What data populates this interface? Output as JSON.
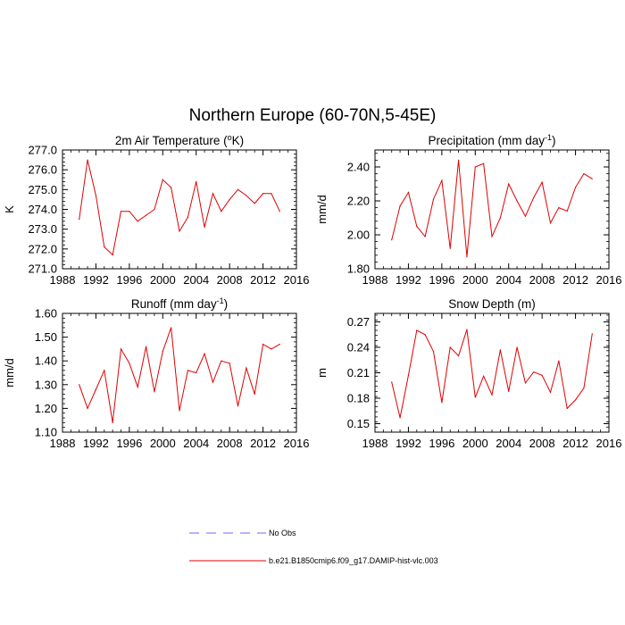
{
  "title": "Northern Europe (60-70N,5-45E)",
  "legend": {
    "items": [
      {
        "label": "No Obs",
        "color": "#6a6aff",
        "dash": true
      },
      {
        "label": "b.e21.B1850cmip6.f09_g17.DAMIP-hist-vlc.003",
        "color": "#e00000",
        "dash": false
      }
    ]
  },
  "chart_data": [
    {
      "type": "line",
      "title": "2m Air Temperature (",
      "title_sup": "o",
      "title_end": "K)",
      "ylabel": "K",
      "xlim": [
        1988,
        2016
      ],
      "xticks": [
        "1988",
        "1992",
        "1996",
        "2000",
        "2004",
        "2008",
        "2012",
        "2016"
      ],
      "ylim": [
        271.0,
        277.0
      ],
      "yticks": [
        "271.0",
        "272.0",
        "273.0",
        "274.0",
        "275.0",
        "276.0",
        "277.0"
      ],
      "series": [
        {
          "color": "#e00000",
          "x": [
            1990,
            1991,
            1992,
            1993,
            1994,
            1995,
            1996,
            1997,
            1998,
            1999,
            2000,
            2001,
            2002,
            2003,
            2004,
            2005,
            2006,
            2007,
            2008,
            2009,
            2010,
            2011,
            2012,
            2013,
            2014
          ],
          "values": [
            273.5,
            276.5,
            274.7,
            272.1,
            271.7,
            273.9,
            273.9,
            273.4,
            273.7,
            274.0,
            275.5,
            275.1,
            272.9,
            273.6,
            275.4,
            273.1,
            274.8,
            273.9,
            274.5,
            275.0,
            274.7,
            274.3,
            274.8,
            274.8,
            273.9
          ]
        }
      ]
    },
    {
      "type": "line",
      "title": "Precipitation (mm day",
      "title_sup": "-1",
      "title_end": ")",
      "ylabel": "mm/d",
      "xlim": [
        1988,
        2016
      ],
      "xticks": [
        "1988",
        "1992",
        "1996",
        "2000",
        "2004",
        "2008",
        "2012",
        "2016"
      ],
      "ylim": [
        1.8,
        2.5
      ],
      "yticks": [
        "1.80",
        "2.00",
        "2.20",
        "2.40"
      ],
      "series": [
        {
          "color": "#e00000",
          "x": [
            1990,
            1991,
            1992,
            1993,
            1994,
            1995,
            1996,
            1997,
            1998,
            1999,
            2000,
            2001,
            2002,
            2003,
            2004,
            2005,
            2006,
            2007,
            2008,
            2009,
            2010,
            2011,
            2012,
            2013,
            2014
          ],
          "values": [
            1.97,
            2.17,
            2.25,
            2.05,
            1.99,
            2.21,
            2.32,
            1.92,
            2.44,
            1.87,
            2.4,
            2.42,
            1.99,
            2.1,
            2.3,
            2.2,
            2.11,
            2.22,
            2.31,
            2.07,
            2.16,
            2.14,
            2.28,
            2.36,
            2.33
          ]
        }
      ]
    },
    {
      "type": "line",
      "title": "Runoff (mm day",
      "title_sup": "-1",
      "title_end": ")",
      "ylabel": "mm/d",
      "xlim": [
        1988,
        2016
      ],
      "xticks": [
        "1988",
        "1992",
        "1996",
        "2000",
        "2004",
        "2008",
        "2012",
        "2016"
      ],
      "ylim": [
        1.1,
        1.6
      ],
      "yticks": [
        "1.10",
        "1.20",
        "1.30",
        "1.40",
        "1.50",
        "1.60"
      ],
      "series": [
        {
          "color": "#e00000",
          "x": [
            1990,
            1991,
            1992,
            1993,
            1994,
            1995,
            1996,
            1997,
            1998,
            1999,
            2000,
            2001,
            2002,
            2003,
            2004,
            2005,
            2006,
            2007,
            2008,
            2009,
            2010,
            2011,
            2012,
            2013,
            2014
          ],
          "values": [
            1.3,
            1.2,
            1.28,
            1.36,
            1.14,
            1.45,
            1.39,
            1.29,
            1.46,
            1.27,
            1.44,
            1.54,
            1.19,
            1.36,
            1.35,
            1.43,
            1.31,
            1.4,
            1.39,
            1.21,
            1.37,
            1.26,
            1.47,
            1.45,
            1.47
          ]
        }
      ]
    },
    {
      "type": "line",
      "title": "Snow Depth (m)",
      "title_sup": "",
      "title_end": "",
      "ylabel": "m",
      "xlim": [
        1988,
        2016
      ],
      "xticks": [
        "1988",
        "1992",
        "1996",
        "2000",
        "2004",
        "2008",
        "2012",
        "2016"
      ],
      "ylim": [
        0.14,
        0.28
      ],
      "yticks": [
        "0.15",
        "0.18",
        "0.21",
        "0.24",
        "0.27"
      ],
      "series": [
        {
          "color": "#e00000",
          "x": [
            1990,
            1991,
            1992,
            1993,
            1994,
            1995,
            1996,
            1997,
            1998,
            1999,
            2000,
            2001,
            2002,
            2003,
            2004,
            2005,
            2006,
            2007,
            2008,
            2009,
            2010,
            2011,
            2012,
            2013,
            2014
          ],
          "values": [
            0.199,
            0.157,
            0.207,
            0.26,
            0.255,
            0.235,
            0.175,
            0.24,
            0.23,
            0.261,
            0.181,
            0.206,
            0.184,
            0.237,
            0.188,
            0.24,
            0.198,
            0.211,
            0.207,
            0.187,
            0.224,
            0.168,
            0.178,
            0.192,
            0.256
          ]
        }
      ]
    }
  ]
}
